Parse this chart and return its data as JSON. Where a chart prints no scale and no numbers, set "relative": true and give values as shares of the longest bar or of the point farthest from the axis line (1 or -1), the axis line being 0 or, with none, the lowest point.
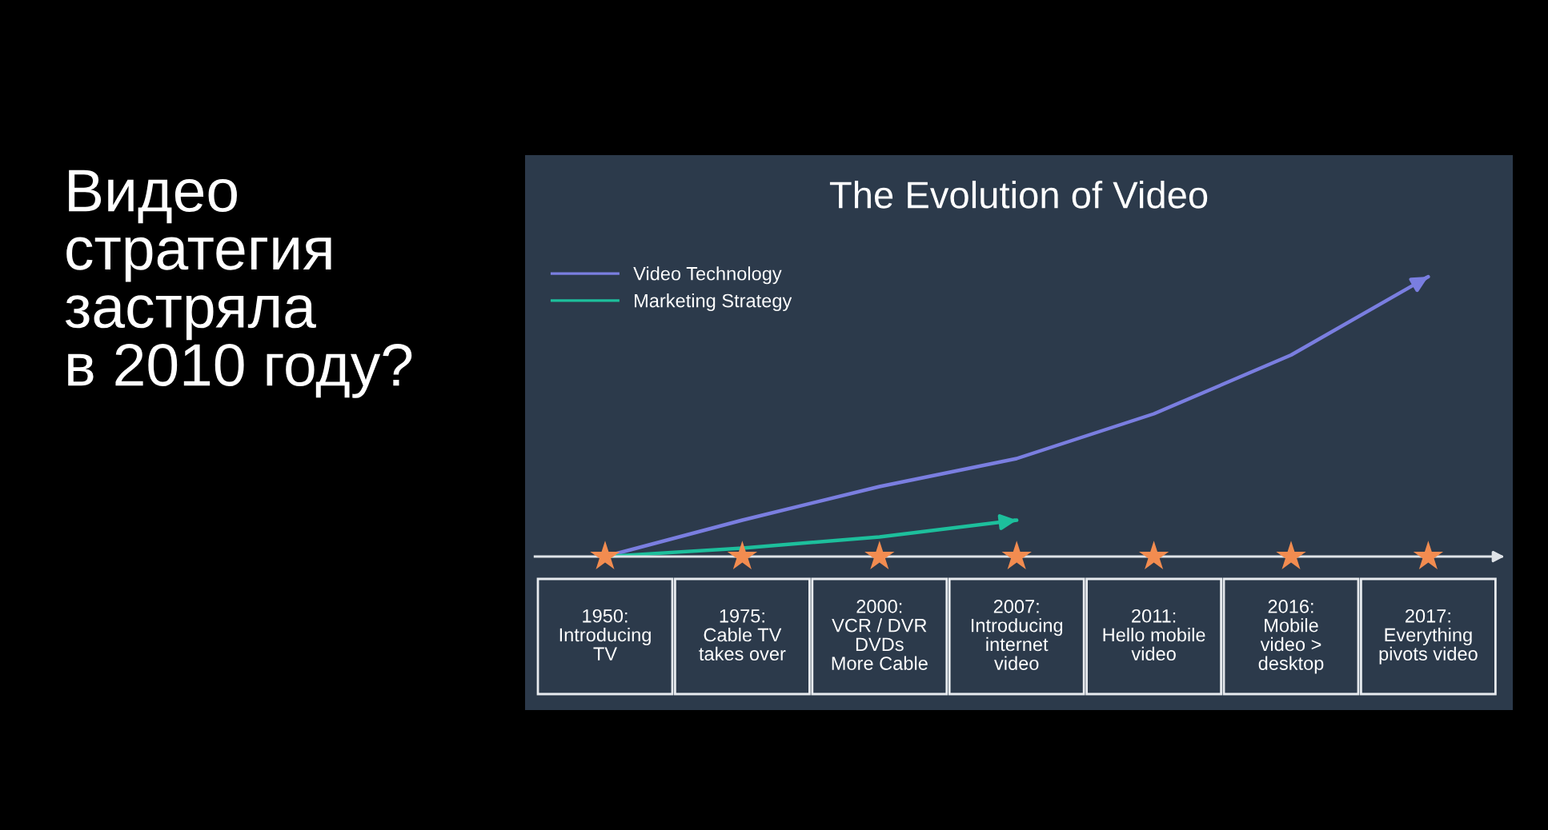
{
  "chart_data": {
    "type": "line",
    "title": "The Evolution of Video",
    "relative": true,
    "annotations": [
      "Видео\nстратегия\nзастряла\nв 2010 году?"
    ],
    "categories": [
      "1950:\nIntroducing\nTV",
      "1975:\nCable TV\ntakes over",
      "2000:\nVCR / DVR\nDVDs\nMore Cable",
      "2007:\nIntroducing\ninternet\nvideo",
      "2011:\nHello mobile\nvideo",
      "2016:\nMobile\nvideo >\ndesktop",
      "2017:\nEverything\npivots video"
    ],
    "series": [
      {
        "name": "Video Technology",
        "color": "#7a7ee0",
        "values": [
          0,
          0.13,
          0.25,
          0.35,
          0.51,
          0.72,
          1.0
        ]
      },
      {
        "name": "Marketing Strategy",
        "color": "#1dbf9c",
        "values": [
          0,
          0.03,
          0.07,
          0.13,
          null,
          null,
          null
        ]
      },
      {
        "type": "scatter",
        "color": "#f28c50",
        "marker": "star",
        "values": [
          0,
          0,
          0,
          0,
          0,
          0,
          0
        ]
      }
    ],
    "legend": "top left",
    "marker": "none",
    "line_style": "solid"
  }
}
